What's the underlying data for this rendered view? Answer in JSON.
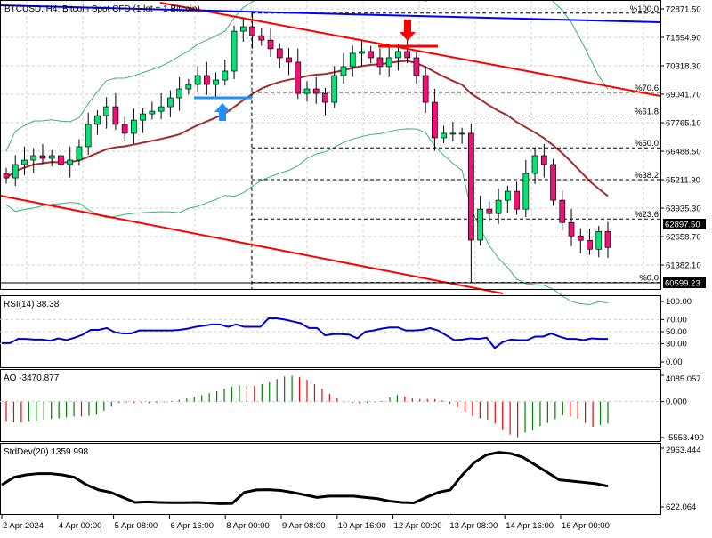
{
  "title": "BTCUSD, H4:  Bitcoin Spot CFD (1 lot = 1 Bitcoin)",
  "colors": {
    "bull": "#00e676",
    "bear": "#ee1177",
    "ma": "#a52a2a",
    "bands": "#3cb371",
    "trend": "#ff0000",
    "blue": "#0000ff",
    "rsi": "#0000cd",
    "ao_up": "#008000",
    "ao_down": "#ff0000",
    "std": "#000000"
  },
  "price_axis": {
    "labels": [
      "72871.50",
      "71594.90",
      "70318.30",
      "69041.70",
      "67765.10",
      "66488.50",
      "65211.90",
      "63935.30",
      "62658.70",
      "61382.10"
    ],
    "current_price": "62897.50",
    "low_price": "60599.23"
  },
  "fib_levels": [
    {
      "label": "%100.0",
      "ratio": 1.0
    },
    {
      "label": "%70.6",
      "ratio": 0.706
    },
    {
      "label": "%61.8",
      "ratio": 0.618
    },
    {
      "label": "%50.0",
      "ratio": 0.5
    },
    {
      "label": "%38.2",
      "ratio": 0.382
    },
    {
      "label": "%23.6",
      "ratio": 0.236
    },
    {
      "label": "%0.0",
      "ratio": 0.0
    }
  ],
  "time_axis": [
    "2 Apr 2024",
    "4 Apr 00:00",
    "5 Apr 08:00",
    "6 Apr 16:00",
    "8 Apr 00:00",
    "9 Apr 08:00",
    "10 Apr 16:00",
    "12 Apr 00:00",
    "13 Apr 08:00",
    "14 Apr 16:00",
    "16 Apr 00:00"
  ],
  "rsi": {
    "label": "RSI(14) 38.38",
    "levels": [
      "100.00",
      "70.00",
      "50.00",
      "30.00",
      "0.00"
    ]
  },
  "ao": {
    "label": "AO -3470.877",
    "levels": [
      "4085.057",
      "0.000",
      "-5553.490"
    ]
  },
  "stddev": {
    "label": "StdDev(20) 1359.998",
    "levels": [
      "2963.444",
      "622.064"
    ]
  },
  "chart_data": [
    {
      "type": "candlestick",
      "title": "BTCUSD, H4",
      "price_range": [
        60599.23,
        72871.5
      ],
      "fib_range": [
        60599.23,
        72680
      ],
      "closes": [
        65290,
        65890,
        66090,
        66290,
        66170,
        66290,
        65890,
        66090,
        66690,
        67690,
        68080,
        68480,
        67690,
        67290,
        67880,
        68160,
        68280,
        68480,
        68880,
        69280,
        69480,
        69880,
        69480,
        69680,
        70080,
        71870,
        72070,
        71670,
        71470,
        71080,
        70680,
        70480,
        69080,
        69280,
        69080,
        68680,
        69880,
        70280,
        70880,
        70960,
        70680,
        70280,
        70680,
        70960,
        70680,
        69880,
        68680,
        67090,
        67290,
        67290,
        67290,
        62500,
        63890,
        63690,
        64290,
        64690,
        63890,
        65490,
        66290,
        65890,
        64290,
        63290,
        62690,
        62490,
        62090,
        62890,
        62170
      ]
    },
    {
      "type": "line",
      "name": "RSI(14)",
      "ylim": [
        0,
        100
      ],
      "values": [
        31,
        31,
        38,
        38,
        37,
        37,
        35,
        39,
        36,
        40,
        45,
        53,
        53,
        56,
        49,
        47,
        47,
        52,
        52,
        52,
        52,
        52,
        53,
        55,
        58,
        60,
        62,
        62,
        58,
        62,
        58,
        58,
        58,
        72,
        72,
        70,
        67,
        64,
        56,
        56,
        44,
        46,
        46,
        45,
        39,
        50,
        52,
        55,
        57,
        57,
        52,
        52,
        53,
        56,
        52,
        44,
        36,
        37,
        39,
        38,
        40,
        23,
        33,
        37,
        36,
        36,
        42,
        42,
        47,
        42,
        38,
        38,
        36,
        39,
        38,
        38
      ]
    },
    {
      "type": "histogram",
      "name": "AO",
      "ylim": [
        -5553.49,
        4085.057
      ],
      "values": [
        -3000,
        -3200,
        -3200,
        -3000,
        -2900,
        -2800,
        -2700,
        -2600,
        -2400,
        -2300,
        -2300,
        -2200,
        -2000,
        -1400,
        -700,
        -200,
        -150,
        -200,
        -250,
        -250,
        -200,
        -100,
        100,
        300,
        500,
        700,
        1000,
        1300,
        1600,
        2000,
        2300,
        2500,
        2500,
        2500,
        2700,
        3000,
        3500,
        3900,
        4000,
        3800,
        3400,
        2700,
        2000,
        1200,
        500,
        -100,
        -300,
        -300,
        -200,
        -100,
        100,
        700,
        1000,
        800,
        500,
        400,
        400,
        400,
        200,
        -300,
        -900,
        -1600,
        -2200,
        -2600,
        -2800,
        -3400,
        -4300,
        -5100,
        -5500,
        -4800,
        -4400,
        -3800,
        -3300,
        -2700,
        -2100,
        -2300,
        -2700,
        -3300,
        -3900,
        -3600,
        -3400
      ]
    },
    {
      "type": "line",
      "name": "StdDev(20)",
      "ylim": [
        622.064,
        2963.444
      ],
      "values": [
        1500,
        1800,
        1900,
        1950,
        1950,
        1900,
        1800,
        1500,
        1300,
        1200,
        1000,
        800,
        820,
        800,
        790,
        790,
        800,
        780,
        750,
        760,
        1200,
        1300,
        1310,
        1280,
        1200,
        1100,
        1000,
        1050,
        1050,
        1050,
        1000,
        950,
        850,
        800,
        780,
        1000,
        1200,
        1300,
        1900,
        2400,
        2700,
        2800,
        2750,
        2600,
        2300,
        2000,
        1700,
        1650,
        1600,
        1550,
        1450
      ]
    }
  ]
}
